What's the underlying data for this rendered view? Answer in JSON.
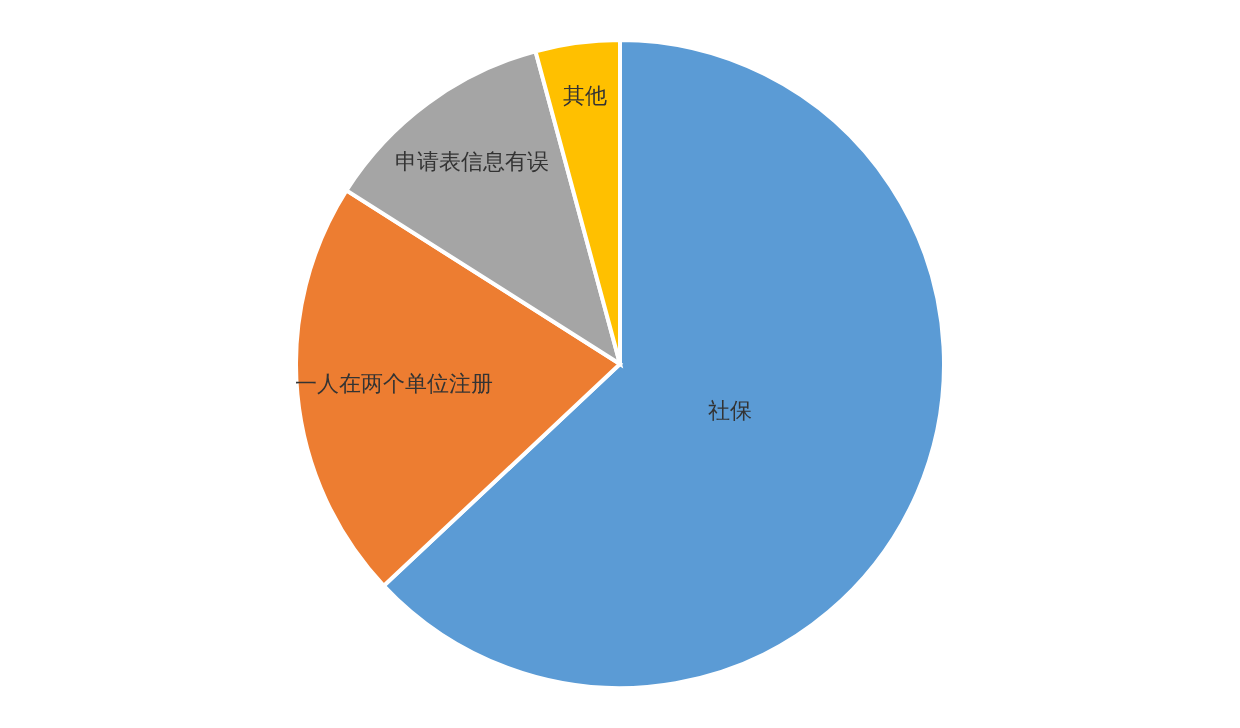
{
  "chart_data": {
    "type": "pie",
    "categories": [
      "社保",
      "一人在两个单位注册",
      "申请表信息有误",
      "其他"
    ],
    "values": [
      63,
      21,
      11.8,
      4.2
    ],
    "colors": [
      "#5b9bd5",
      "#ed7d31",
      "#a5a5a5",
      "#ffc000"
    ]
  }
}
